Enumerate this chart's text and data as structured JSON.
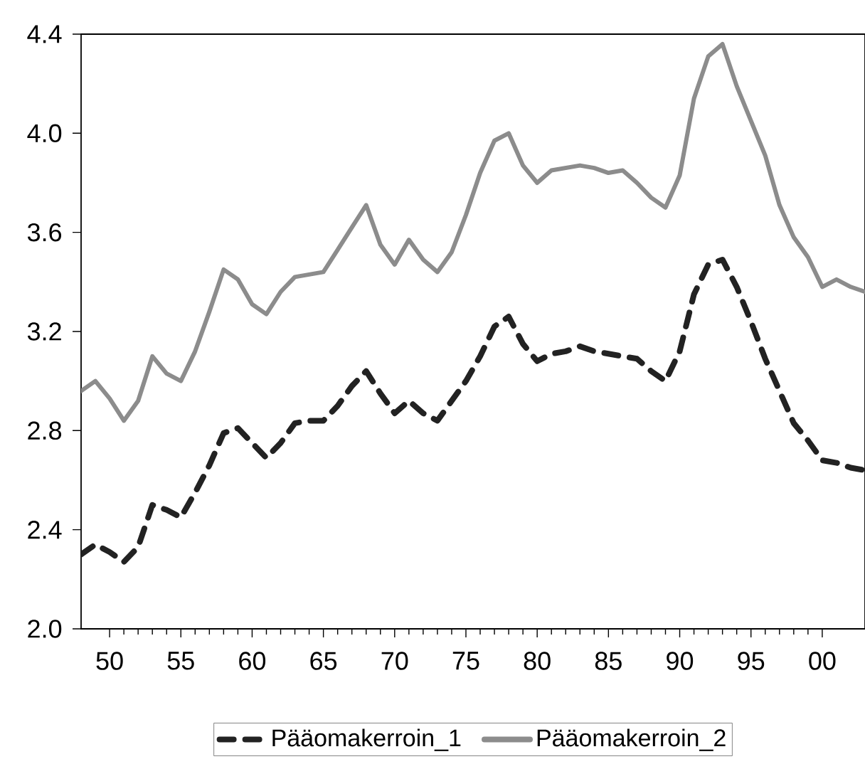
{
  "chart_data": {
    "type": "line",
    "x": [
      1948,
      1949,
      1950,
      1951,
      1952,
      1953,
      1954,
      1955,
      1956,
      1957,
      1958,
      1959,
      1960,
      1961,
      1962,
      1963,
      1964,
      1965,
      1966,
      1967,
      1968,
      1969,
      1970,
      1971,
      1972,
      1973,
      1974,
      1975,
      1976,
      1977,
      1978,
      1979,
      1980,
      1981,
      1982,
      1983,
      1984,
      1985,
      1986,
      1987,
      1988,
      1989,
      1990,
      1991,
      1992,
      1993,
      1994,
      1995,
      1996,
      1997,
      1998,
      1999,
      2000,
      2001,
      2002,
      2003
    ],
    "series": [
      {
        "name": "Pääomakerroin_1",
        "color": "#222222",
        "line_style": "dashed",
        "values": [
          2.3,
          2.34,
          2.31,
          2.27,
          2.33,
          2.5,
          2.48,
          2.45,
          2.55,
          2.66,
          2.79,
          2.81,
          2.75,
          2.69,
          2.75,
          2.83,
          2.84,
          2.84,
          2.9,
          2.98,
          3.04,
          2.95,
          2.87,
          2.92,
          2.87,
          2.84,
          2.92,
          3.0,
          3.1,
          3.22,
          3.26,
          3.15,
          3.08,
          3.11,
          3.12,
          3.14,
          3.12,
          3.11,
          3.1,
          3.09,
          3.04,
          3.0,
          3.12,
          3.35,
          3.47,
          3.49,
          3.38,
          3.24,
          3.09,
          2.96,
          2.83,
          2.76,
          2.68,
          2.67,
          2.65,
          2.64
        ]
      },
      {
        "name": "Pääomakerroin_2",
        "color": "#8c8c8c",
        "line_style": "solid",
        "values": [
          2.96,
          3.0,
          2.93,
          2.84,
          2.92,
          3.1,
          3.03,
          3.0,
          3.12,
          3.28,
          3.45,
          3.41,
          3.31,
          3.27,
          3.36,
          3.42,
          3.43,
          3.44,
          3.53,
          3.62,
          3.71,
          3.55,
          3.47,
          3.57,
          3.49,
          3.44,
          3.52,
          3.67,
          3.84,
          3.97,
          4.0,
          3.87,
          3.8,
          3.85,
          3.86,
          3.87,
          3.86,
          3.84,
          3.85,
          3.8,
          3.74,
          3.7,
          3.83,
          4.14,
          4.31,
          4.36,
          4.19,
          4.05,
          3.91,
          3.71,
          3.58,
          3.5,
          3.38,
          3.41,
          3.38,
          3.36
        ]
      }
    ],
    "xlim": [
      1948,
      2003
    ],
    "xticks": [
      {
        "value": 1950,
        "label": "50"
      },
      {
        "value": 1955,
        "label": "55"
      },
      {
        "value": 1960,
        "label": "60"
      },
      {
        "value": 1965,
        "label": "65"
      },
      {
        "value": 1970,
        "label": "70"
      },
      {
        "value": 1975,
        "label": "75"
      },
      {
        "value": 1980,
        "label": "80"
      },
      {
        "value": 1985,
        "label": "85"
      },
      {
        "value": 1990,
        "label": "90"
      },
      {
        "value": 1995,
        "label": "95"
      },
      {
        "value": 2000,
        "label": "00"
      }
    ],
    "ylim": [
      2.0,
      4.4
    ],
    "yticks": [
      {
        "value": 2.0,
        "label": "2.0"
      },
      {
        "value": 2.4,
        "label": "2.4"
      },
      {
        "value": 2.8,
        "label": "2.8"
      },
      {
        "value": 3.2,
        "label": "3.2"
      },
      {
        "value": 3.6,
        "label": "3.6"
      },
      {
        "value": 4.0,
        "label": "4.0"
      },
      {
        "value": 4.4,
        "label": "4.4"
      }
    ],
    "legend": "bottom",
    "grid": false
  }
}
